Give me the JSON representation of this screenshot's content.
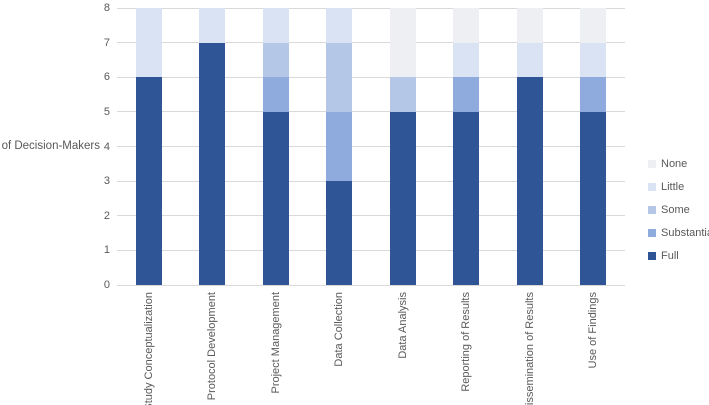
{
  "chart_data": {
    "type": "bar",
    "subtype": "stacked-vertical",
    "title": "",
    "xlabel": "",
    "ylabel": "# of Decision-Makers",
    "ylim": [
      0,
      8
    ],
    "yticks": [
      0,
      1,
      2,
      3,
      4,
      5,
      6,
      7,
      8
    ],
    "grid": true,
    "gridline_color": "#d9d9d9",
    "text_color": "#595959",
    "categories": [
      "Study Conceptualization",
      "Protocol Development",
      "Project Management",
      "Data Collection",
      "Data Analysis",
      "Reporting of Results",
      "Dissemination of Results",
      "Use of Findings"
    ],
    "series": [
      {
        "name": "Full",
        "color": "#2f5597",
        "values": [
          6,
          7,
          5,
          3,
          5,
          5,
          6,
          5
        ]
      },
      {
        "name": "Substantial",
        "color": "#8faadc",
        "values": [
          0,
          0,
          1,
          2,
          0,
          1,
          0,
          1
        ]
      },
      {
        "name": "Some",
        "color": "#b4c7e7",
        "values": [
          0,
          0,
          1,
          2,
          1,
          0,
          0,
          0
        ]
      },
      {
        "name": "Little",
        "color": "#dae3f3",
        "values": [
          2,
          1,
          1,
          1,
          0,
          1,
          1,
          1
        ]
      },
      {
        "name": "None",
        "color": "#edeff2",
        "values": [
          0,
          0,
          0,
          0,
          2,
          1,
          1,
          1
        ]
      }
    ],
    "legend": {
      "position": "right",
      "entries": [
        "None",
        "Little",
        "Some",
        "Substantial",
        "Full"
      ]
    }
  }
}
